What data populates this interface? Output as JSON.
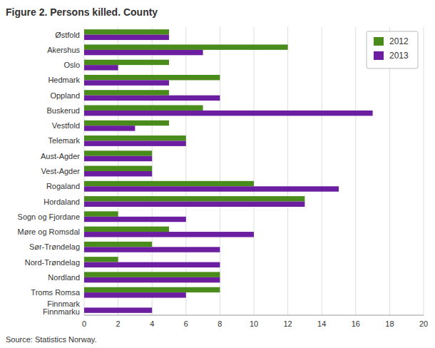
{
  "chart_data": {
    "type": "bar",
    "orientation": "horizontal",
    "title": "Figure 2. Persons killed. County",
    "source": "Source: Statistics Norway.",
    "categories": [
      "Østfold",
      "Akershus",
      "Oslo",
      "Hedmark",
      "Oppland",
      "Buskerud",
      "Vestfold",
      "Telemark",
      "Aust-Agder",
      "Vest-Agder",
      "Rogaland",
      "Hordaland",
      "Sogn og Fjordane",
      "Møre og Romsdal",
      "Sør-Trøndelag",
      "Nord-Trøndelag",
      "Nordland",
      "Troms Romsa",
      "Finnmark\nFinnmarku"
    ],
    "series": [
      {
        "name": "2012",
        "color": "#4a8c1c",
        "values": [
          5,
          12,
          5,
          8,
          5,
          7,
          5,
          6,
          4,
          4,
          10,
          13,
          2,
          5,
          4,
          2,
          8,
          8,
          0
        ]
      },
      {
        "name": "2013",
        "color": "#6b1fa0",
        "values": [
          5,
          7,
          2,
          5,
          8,
          17,
          3,
          6,
          4,
          4,
          15,
          13,
          6,
          10,
          8,
          8,
          8,
          6,
          4
        ]
      }
    ],
    "xlim": [
      0,
      20
    ],
    "xticks": [
      0,
      2,
      4,
      6,
      8,
      10,
      12,
      14,
      16,
      18,
      20
    ],
    "grid": true,
    "legend": "upper right"
  }
}
